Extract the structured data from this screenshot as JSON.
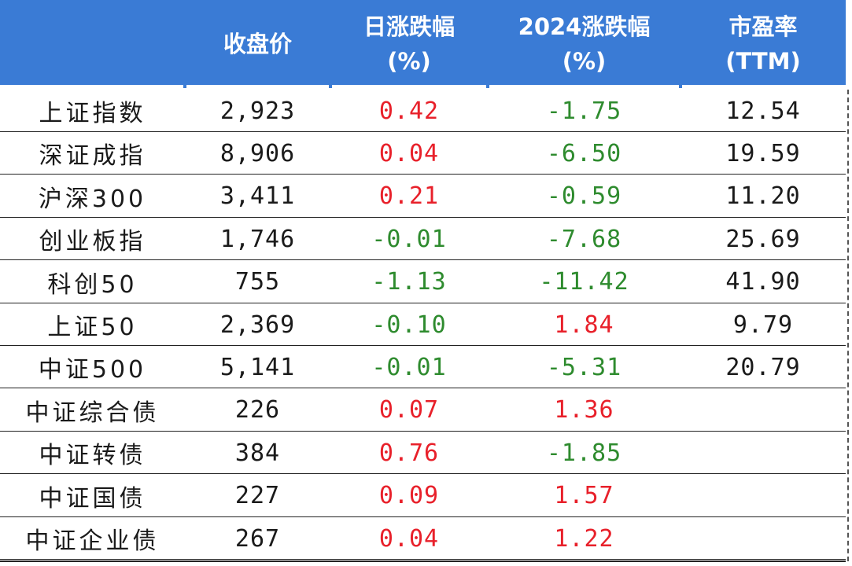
{
  "headers": [
    "",
    "收盘价",
    "日涨跌幅\n(%)",
    "2024涨跌幅\n(%)",
    "市盈率\n(TTM)"
  ],
  "rows": [
    {
      "name": "上证指数",
      "close": "2,923",
      "day": "0.42",
      "ytd": "-1.75",
      "pe": "12.54"
    },
    {
      "name": "深证成指",
      "close": "8,906",
      "day": "0.04",
      "ytd": "-6.50",
      "pe": "19.59"
    },
    {
      "name": "沪深300",
      "close": "3,411",
      "day": "0.21",
      "ytd": "-0.59",
      "pe": "11.20"
    },
    {
      "name": "创业板指",
      "close": "1,746",
      "day": "-0.01",
      "ytd": "-7.68",
      "pe": "25.69"
    },
    {
      "name": "科创50",
      "close": "755",
      "day": "-1.13",
      "ytd": "-11.42",
      "pe": "41.90"
    },
    {
      "name": "上证50",
      "close": "2,369",
      "day": "-0.10",
      "ytd": "1.84",
      "pe": "9.79"
    },
    {
      "name": "中证500",
      "close": "5,141",
      "day": "-0.01",
      "ytd": "-5.31",
      "pe": "20.79"
    },
    {
      "name": "中证综合债",
      "close": "226",
      "day": "0.07",
      "ytd": "1.36",
      "pe": ""
    },
    {
      "name": "中证转债",
      "close": "384",
      "day": "0.76",
      "ytd": "-1.85",
      "pe": ""
    },
    {
      "name": "中证国债",
      "close": "227",
      "day": "0.09",
      "ytd": "1.57",
      "pe": ""
    },
    {
      "name": "中证企业债",
      "close": "267",
      "day": "0.04",
      "ytd": "1.22",
      "pe": ""
    }
  ],
  "colors": {
    "header_bg": "#3a7bd5",
    "positive": "#e8202a",
    "negative": "#2e8b2e"
  }
}
